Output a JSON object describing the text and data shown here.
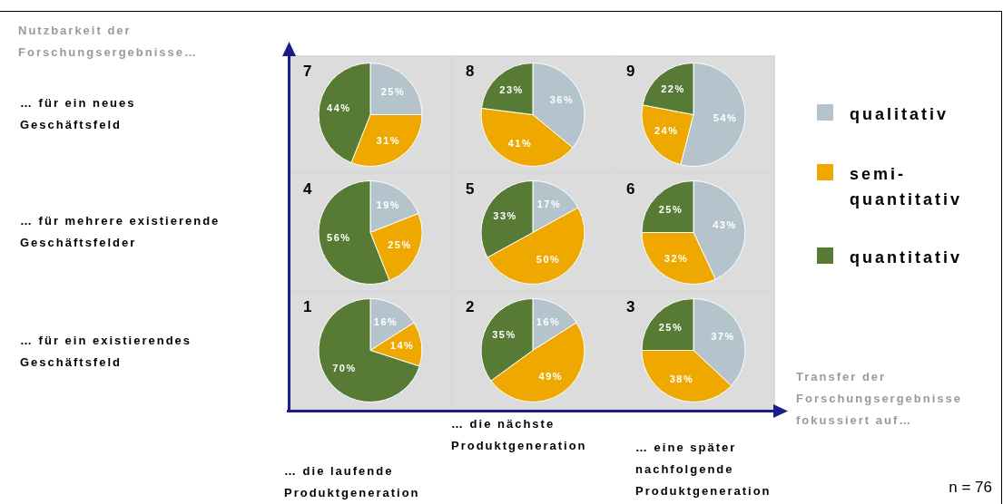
{
  "chart_data": [
    {
      "type": "other",
      "ylabel": "Nutzbarkeit der Forschungsergebnisse…",
      "xlabel": "Transfer der Forschungsergebnisse fokussiert auf…",
      "categories": [
        "… die laufende Produktgeneration",
        "… die nächste Produktgeneration",
        "… eine später nachfolgende Produktgeneration"
      ],
      "y_categories": [
        "… für ein neues Geschäftsfeld",
        "… für mehrere existierende Geschäftsfelder",
        "… für ein existierendes Geschäftsfeld"
      ],
      "annotations": [
        "n = 76"
      ]
    },
    {
      "type": "pie",
      "title": "7",
      "categories": [
        "qualitativ",
        "semi-quantitativ",
        "quantitativ"
      ],
      "values": [
        25,
        31,
        44
      ],
      "colors": [
        "#b4c3cc",
        "#eea800",
        "#577b34"
      ],
      "value_labels": [
        "25%",
        "31%",
        "44%"
      ],
      "legend": "right"
    },
    {
      "type": "pie",
      "title": "8",
      "categories": [
        null,
        null,
        null
      ],
      "values": [
        36,
        41,
        23
      ],
      "colors": [
        "#b4c3cc",
        "#eea800",
        "#577b34"
      ],
      "value_labels": [
        "36%",
        "41%",
        "23%"
      ]
    },
    {
      "type": "pie",
      "title": "9",
      "categories": [
        null,
        null,
        null
      ],
      "values": [
        54,
        24,
        22
      ],
      "colors": [
        "#b4c3cc",
        "#eea800",
        "#577b34"
      ],
      "value_labels": [
        "54%",
        "24%",
        "22%"
      ]
    },
    {
      "type": "pie",
      "title": "4",
      "categories": [
        null,
        null,
        null
      ],
      "values": [
        19,
        25,
        56
      ],
      "colors": [
        "#b4c3cc",
        "#eea800",
        "#577b34"
      ],
      "value_labels": [
        "19%",
        "25%",
        "56%"
      ]
    },
    {
      "type": "pie",
      "title": "5",
      "categories": [
        null,
        null,
        null
      ],
      "values": [
        17,
        50,
        33
      ],
      "colors": [
        "#b4c3cc",
        "#eea800",
        "#577b34"
      ],
      "value_labels": [
        "17%",
        "50%",
        "33%"
      ]
    },
    {
      "type": "pie",
      "title": "6",
      "categories": [
        null,
        null,
        null
      ],
      "values": [
        43,
        32,
        25
      ],
      "colors": [
        "#b4c3cc",
        "#eea800",
        "#577b34"
      ],
      "value_labels": [
        "43%",
        "32%",
        "25%"
      ]
    },
    {
      "type": "pie",
      "title": "1",
      "categories": [
        null,
        null,
        null
      ],
      "values": [
        16,
        14,
        70
      ],
      "colors": [
        "#b4c3cc",
        "#eea800",
        "#577b34"
      ],
      "value_labels": [
        "16%",
        "14%",
        "70%"
      ]
    },
    {
      "type": "pie",
      "title": "2",
      "categories": [
        null,
        null,
        null
      ],
      "values": [
        16,
        49,
        35
      ],
      "colors": [
        "#b4c3cc",
        "#eea800",
        "#577b34"
      ],
      "value_labels": [
        "16%",
        "49%",
        "35%"
      ]
    },
    {
      "type": "pie",
      "title": "3",
      "categories": [
        null,
        null,
        null
      ],
      "values": [
        37,
        38,
        25
      ],
      "colors": [
        "#b4c3cc",
        "#eea800",
        "#577b34"
      ],
      "value_labels": [
        "37%",
        "38%",
        "25%"
      ]
    }
  ]
}
